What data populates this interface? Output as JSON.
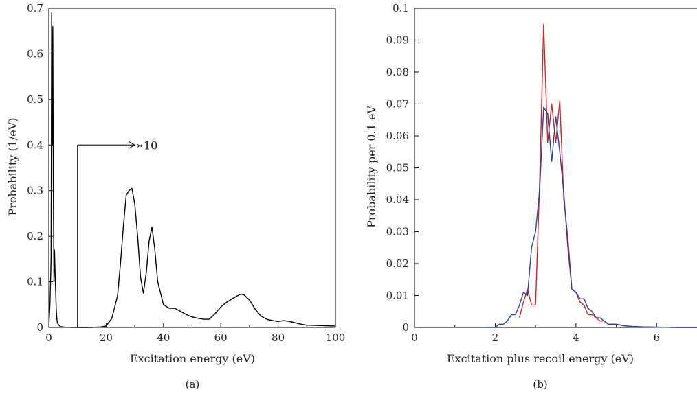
{
  "chart_data": [
    {
      "type": "line",
      "panel_label": "(a)",
      "xlabel": "Excitation energy (eV)",
      "ylabel": "Probability (1/eV)",
      "xlim": [
        0,
        100
      ],
      "ylim": [
        0,
        0.7
      ],
      "xticks": [
        0,
        20,
        40,
        60,
        80,
        100
      ],
      "yticks": [
        0,
        0.1,
        0.2,
        0.3,
        0.4,
        0.5,
        0.6,
        0.7
      ],
      "yticklabels": [
        "0",
        "0.1",
        "0.2",
        "0.3",
        "0.4",
        "0.5",
        "0.6",
        "0.7"
      ],
      "grid": false,
      "annotation": {
        "text": "∗10",
        "marker_x": 10,
        "arrow_from_x": 10,
        "arrow_to_x": 30,
        "arrow_y": 0.4
      },
      "series": [
        {
          "color": "#000000",
          "x": [
            0,
            0.4,
            0.8,
            1.0,
            1.2,
            1.4,
            1.6,
            1.8,
            2.0,
            2.2,
            2.4,
            2.6,
            2.8,
            3.0,
            3.5,
            4.0,
            5.0,
            6.0,
            8.0,
            10.0
          ],
          "y": [
            0,
            0.05,
            0.15,
            0.69,
            0.4,
            0.66,
            0.3,
            0.1,
            0.17,
            0.12,
            0.08,
            0.04,
            0.02,
            0.01,
            0.005,
            0.002,
            0.001,
            0.0005,
            0.0002,
            0
          ]
        },
        {
          "color": "#000000",
          "x": [
            10,
            15,
            18,
            20,
            22,
            24,
            25,
            26,
            27,
            28,
            29,
            30,
            31,
            32,
            33,
            34,
            35,
            36,
            37,
            38,
            40,
            42,
            44,
            46,
            48,
            50,
            52,
            54,
            56,
            58,
            60,
            62,
            64,
            66,
            67,
            68,
            70,
            72,
            74,
            76,
            78,
            80,
            82,
            84,
            86,
            88,
            90,
            95,
            100
          ],
          "y": [
            0,
            0,
            0.001,
            0.003,
            0.02,
            0.07,
            0.14,
            0.22,
            0.29,
            0.3,
            0.305,
            0.27,
            0.2,
            0.11,
            0.075,
            0.12,
            0.19,
            0.22,
            0.17,
            0.1,
            0.05,
            0.042,
            0.042,
            0.035,
            0.028,
            0.023,
            0.02,
            0.018,
            0.018,
            0.03,
            0.045,
            0.055,
            0.063,
            0.07,
            0.073,
            0.072,
            0.06,
            0.04,
            0.025,
            0.018,
            0.015,
            0.013,
            0.015,
            0.013,
            0.01,
            0.007,
            0.005,
            0.004,
            0.003
          ]
        }
      ]
    },
    {
      "type": "line",
      "panel_label": "(b)",
      "xlabel": "Excitation plus recoil energy (eV)",
      "ylabel": "Probability per 0.1 eV",
      "xlim": [
        0,
        7
      ],
      "ylim": [
        0,
        0.1
      ],
      "xticks": [
        0,
        2,
        4,
        6
      ],
      "yticks": [
        0,
        0.01,
        0.02,
        0.03,
        0.04,
        0.05,
        0.06,
        0.07,
        0.08,
        0.09,
        0.1
      ],
      "yticklabels": [
        "0",
        "0.01",
        "0.02",
        "0.03",
        "0.04",
        "0.05",
        "0.06",
        "0.07",
        "0.08",
        "0.09",
        "0.1"
      ],
      "grid": false,
      "series": [
        {
          "color": "#d42020",
          "x": [
            2.6,
            2.7,
            2.8,
            2.9,
            3.0,
            3.1,
            3.2,
            3.3,
            3.4,
            3.5,
            3.6,
            3.7,
            3.8,
            3.9,
            4.0,
            4.1,
            4.2,
            4.3,
            4.4,
            4.5,
            4.6,
            4.7,
            4.8,
            4.9,
            5.0,
            5.2,
            5.4,
            5.6,
            6.0,
            6.5,
            7.0
          ],
          "y": [
            0.003,
            0.008,
            0.012,
            0.007,
            0.007,
            0.045,
            0.095,
            0.058,
            0.07,
            0.058,
            0.071,
            0.04,
            0.028,
            0.012,
            0.011,
            0.008,
            0.007,
            0.004,
            0.004,
            0.003,
            0.002,
            0.002,
            0.001,
            0.001,
            0.001,
            0.0005,
            0.0003,
            0.0002,
            0.0001,
            0,
            0
          ]
        },
        {
          "color": "#2b3f9a",
          "x": [
            1.8,
            2.0,
            2.1,
            2.2,
            2.3,
            2.4,
            2.5,
            2.6,
            2.7,
            2.8,
            2.9,
            3.0,
            3.1,
            3.2,
            3.3,
            3.4,
            3.5,
            3.6,
            3.7,
            3.8,
            3.9,
            4.0,
            4.1,
            4.2,
            4.3,
            4.4,
            4.5,
            4.6,
            4.7,
            4.8,
            4.9,
            5.0,
            5.2,
            5.4,
            5.6,
            6.0,
            6.5,
            7.0
          ],
          "y": [
            0,
            0,
            0.001,
            0.001,
            0.002,
            0.004,
            0.004,
            0.007,
            0.011,
            0.01,
            0.025,
            0.03,
            0.043,
            0.069,
            0.067,
            0.052,
            0.066,
            0.055,
            0.042,
            0.025,
            0.012,
            0.011,
            0.009,
            0.009,
            0.006,
            0.005,
            0.003,
            0.003,
            0.002,
            0.001,
            0.001,
            0.001,
            0.0005,
            0.0003,
            0.0002,
            0.0001,
            0,
            0
          ]
        }
      ]
    }
  ]
}
